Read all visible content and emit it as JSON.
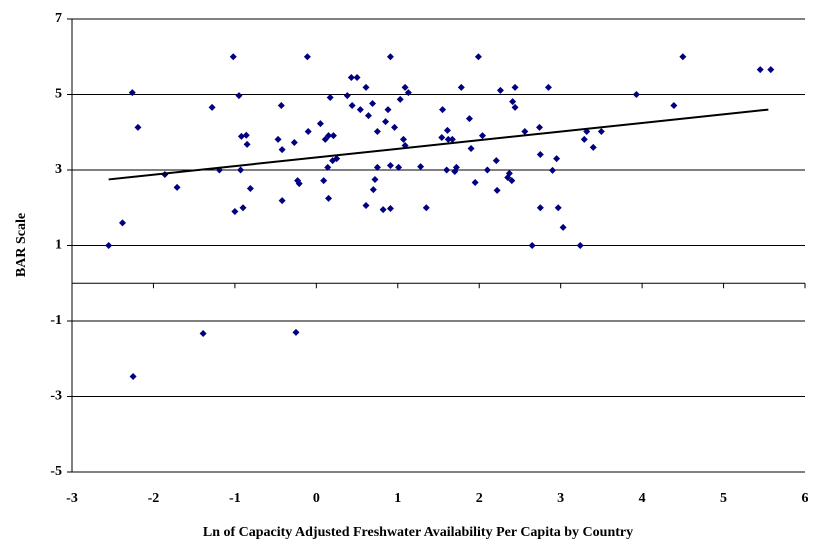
{
  "chart_data": {
    "type": "scatter",
    "x_label": "Ln of Capacity Adjusted Freshwater Availability Per Capita by Country",
    "y_label": "BAR Scale",
    "xlim": [
      -3,
      6
    ],
    "xticks": [
      -3,
      -2,
      -1,
      0,
      1,
      2,
      3,
      4,
      5,
      6
    ],
    "ylim": [
      -5,
      7
    ],
    "yticks": [
      -5,
      -3,
      -1,
      1,
      3,
      5,
      7
    ],
    "grid": true,
    "color": "#000080",
    "x": [
      -2.55,
      -2.38,
      -2.26,
      -2.25,
      -2.19,
      -1.86,
      -1.71,
      -1.39,
      -1.28,
      -1.19,
      -1.02,
      -1.0,
      -0.95,
      -0.93,
      -0.92,
      -0.9,
      -0.86,
      -0.85,
      -0.81,
      -0.47,
      -0.43,
      -0.42,
      -0.42,
      -0.27,
      -0.25,
      -0.23,
      -0.21,
      -0.11,
      -0.1,
      0.05,
      0.09,
      0.11,
      0.14,
      0.15,
      0.15,
      0.17,
      0.2,
      0.21,
      0.25,
      0.38,
      0.43,
      0.44,
      0.5,
      0.54,
      0.61,
      0.61,
      0.64,
      0.69,
      0.7,
      0.72,
      0.75,
      0.75,
      0.82,
      0.85,
      0.88,
      0.91,
      0.91,
      0.91,
      0.96,
      1.01,
      1.03,
      1.07,
      1.09,
      1.09,
      1.13,
      1.28,
      1.35,
      1.54,
      1.55,
      1.6,
      1.61,
      1.62,
      1.67,
      1.7,
      1.72,
      1.78,
      1.88,
      1.9,
      1.95,
      1.99,
      2.04,
      2.1,
      2.21,
      2.22,
      2.26,
      2.35,
      2.37,
      2.4,
      2.41,
      2.44,
      2.44,
      2.56,
      2.65,
      2.74,
      2.75,
      2.75,
      2.85,
      2.9,
      2.95,
      2.97,
      3.03,
      3.24,
      3.29,
      3.32,
      3.4,
      3.5,
      3.93,
      4.39,
      4.5,
      5.45,
      5.58
    ],
    "values": [
      1.0,
      1.6,
      5.05,
      -2.47,
      4.13,
      2.88,
      2.54,
      -1.33,
      4.66,
      3.0,
      6.0,
      1.9,
      4.97,
      3.0,
      3.89,
      2.0,
      3.92,
      3.68,
      2.51,
      3.81,
      4.71,
      3.54,
      2.19,
      3.73,
      -1.3,
      2.72,
      2.64,
      6.0,
      4.02,
      4.23,
      2.72,
      3.81,
      3.07,
      3.91,
      2.25,
      4.92,
      3.25,
      3.91,
      3.3,
      4.97,
      5.45,
      4.71,
      5.45,
      4.6,
      5.19,
      2.06,
      4.44,
      4.76,
      2.48,
      2.75,
      4.02,
      3.07,
      1.95,
      4.28,
      4.6,
      3.12,
      6.0,
      1.98,
      4.13,
      3.07,
      4.87,
      3.81,
      5.19,
      3.65,
      5.05,
      3.09,
      2.0,
      3.86,
      4.6,
      3.0,
      4.05,
      3.81,
      3.81,
      2.96,
      3.07,
      5.19,
      4.36,
      3.57,
      2.67,
      6.0,
      3.91,
      3.0,
      3.25,
      2.46,
      5.11,
      2.8,
      2.91,
      2.72,
      4.81,
      4.66,
      5.19,
      4.02,
      1.0,
      4.13,
      3.41,
      2.0,
      5.19,
      2.99,
      3.3,
      2.0,
      1.48,
      1.0,
      3.81,
      4.02,
      3.6,
      4.02,
      5.0,
      4.71,
      6.0,
      5.66,
      5.66
    ],
    "trendline": {
      "color": "#000000",
      "x": [
        -2.55,
        5.55
      ],
      "values": [
        2.75,
        4.6
      ]
    }
  }
}
